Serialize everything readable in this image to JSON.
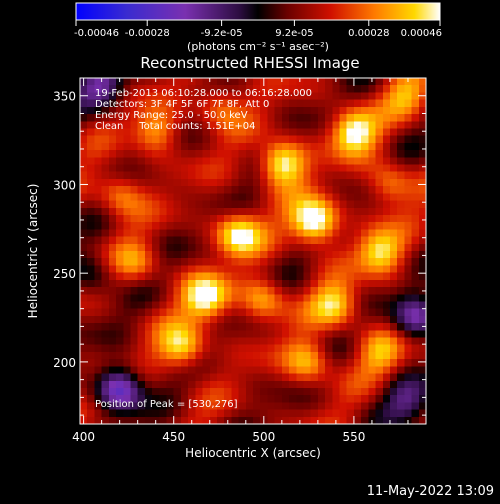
{
  "chart_data": {
    "type": "heatmap",
    "title": "Reconstructed RHESSI Image",
    "xlabel": "Heliocentric X (arcsec)",
    "ylabel": "Heliocentric Y (arcsec)",
    "xlim": [
      398,
      590
    ],
    "ylim": [
      165,
      360
    ],
    "x_ticks": [
      400,
      450,
      500,
      550
    ],
    "y_ticks": [
      200,
      250,
      300,
      350
    ],
    "colorbar": {
      "range": [
        -0.00046,
        0.00046
      ],
      "tick_values": [
        -0.00046,
        -0.00028,
        -9.2e-05,
        9.2e-05,
        0.00028,
        0.00046
      ],
      "tick_labels": [
        "-0.00046",
        "-0.00028",
        "-9.2e-05",
        "9.2e-05",
        "0.00028",
        "0.00046"
      ],
      "units": "(photons cm⁻² s⁻¹ asec⁻²)"
    },
    "annotations": [
      "19-Feb-2013 06:10:28.000 to 06:16:28.000",
      "Detectors: 3F 4F 5F 6F 7F 8F, Att 0",
      "Energy Range: 25.0 - 50.0 keV",
      "Clean     Total counts: 1.51E+04"
    ],
    "peak_label": "Position of Peak = [530,276]",
    "peak": [
      530,
      276
    ],
    "bright_sources": [
      {
        "x": 528,
        "y": 279,
        "value": 0.00046
      },
      {
        "x": 510,
        "y": 312,
        "value": 0.0004
      },
      {
        "x": 550,
        "y": 330,
        "value": 0.00036
      },
      {
        "x": 486,
        "y": 272,
        "value": 0.00034
      },
      {
        "x": 468,
        "y": 236,
        "value": 0.00036
      },
      {
        "x": 455,
        "y": 208,
        "value": 0.00032
      },
      {
        "x": 565,
        "y": 262,
        "value": 0.0003
      },
      {
        "x": 540,
        "y": 232,
        "value": 0.00028
      },
      {
        "x": 525,
        "y": 200,
        "value": 0.00026
      },
      {
        "x": 565,
        "y": 205,
        "value": 0.00022
      },
      {
        "x": 420,
        "y": 295,
        "value": 0.00022
      },
      {
        "x": 440,
        "y": 330,
        "value": 0.00024
      },
      {
        "x": 475,
        "y": 345,
        "value": 0.0002
      },
      {
        "x": 570,
        "y": 300,
        "value": 0.00022
      },
      {
        "x": 500,
        "y": 235,
        "value": 0.00024
      },
      {
        "x": 430,
        "y": 255,
        "value": 0.00018
      },
      {
        "x": 580,
        "y": 350,
        "value": 0.0002
      }
    ],
    "negative_regions": [
      {
        "x": 420,
        "y": 185,
        "value": -0.00038
      },
      {
        "x": 410,
        "y": 355,
        "value": -0.00026
      },
      {
        "x": 585,
        "y": 225,
        "value": -0.0003
      },
      {
        "x": 580,
        "y": 180,
        "value": -0.00022
      },
      {
        "x": 405,
        "y": 250,
        "value": -0.00014
      }
    ]
  },
  "footer": {
    "datetime": "11-May-2022 13:09"
  }
}
